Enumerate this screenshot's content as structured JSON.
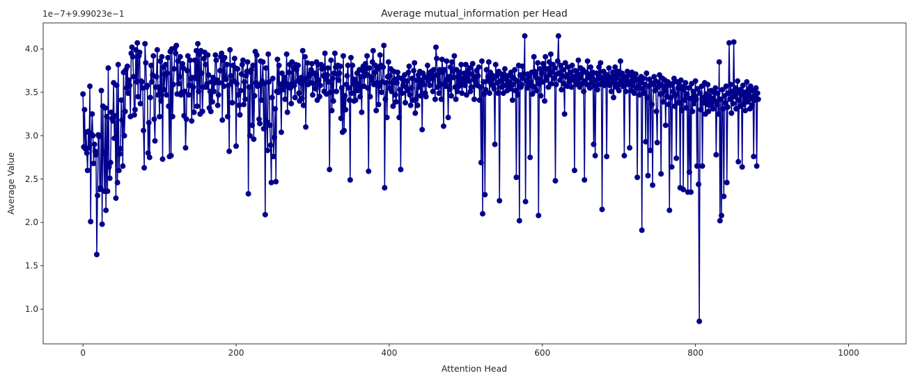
{
  "chart_data": {
    "type": "line",
    "title": "Average mutual_information per Head",
    "xlabel": "Attention Head",
    "ylabel": "Average Value",
    "y_offset_label": "1e−7+9.99023e−1",
    "xlim": [
      -52,
      1075
    ],
    "ylim": [
      0.6,
      4.3
    ],
    "x_ticks": [
      0,
      200,
      400,
      600,
      800,
      1000
    ],
    "x_tick_labels": [
      "0",
      "200",
      "400",
      "600",
      "800",
      "1000"
    ],
    "y_ticks": [
      1.0,
      1.5,
      2.0,
      2.5,
      3.0,
      3.5,
      4.0
    ],
    "y_tick_labels": [
      "1.0",
      "1.5",
      "2.0",
      "2.5",
      "3.0",
      "3.5",
      "4.0"
    ],
    "grid": false,
    "series": [
      {
        "color": "#00008b",
        "marker": "circle",
        "x_start": 0,
        "x_step": 1,
        "values": [
          3.48,
          2.87,
          3.3,
          2.85,
          3.04,
          2.8,
          2.6,
          3.05,
          2.86,
          3.57,
          2.01,
          3.02,
          3.25,
          3.0,
          2.68,
          2.9,
          2.82,
          2.78,
          1.63,
          2.31,
          3.01,
          2.99,
          2.38,
          2.4,
          3.52,
          1.98,
          3.34,
          2.8,
          2.36,
          3.32,
          2.14,
          3.22,
          2.36,
          3.78,
          2.64,
          2.51,
          2.69,
          3.27,
          3.2,
          3.17,
          3.61,
          2.97,
          3.23,
          2.28,
          3.58,
          2.46,
          3.82,
          2.6,
          2.79,
          2.85,
          3.41,
          3.18,
          2.65,
          3.73,
          3.0,
          3.28,
          3.76,
          3.55,
          3.8,
          3.49,
          3.64,
          3.58,
          3.22,
          3.95,
          4.02,
          3.91,
          3.68,
          3.24,
          3.3,
          3.99,
          3.62,
          4.07,
          3.45,
          3.92,
          3.96,
          3.37,
          3.63,
          3.62,
          3.55,
          3.06,
          2.63,
          4.06,
          3.84,
          3.56,
          3.58,
          2.8,
          3.15,
          2.75,
          3.44,
          3.81,
          3.62,
          3.7,
          3.92,
          3.19,
          2.94,
          3.56,
          3.68,
          3.99,
          3.47,
          3.56,
          3.22,
          3.86,
          3.4,
          3.91,
          2.73,
          3.79,
          3.53,
          3.71,
          3.82,
          3.47,
          3.72,
          3.9,
          3.34,
          2.76,
          3.97,
          2.77,
          4.0,
          3.22,
          3.59,
          3.77,
          4.01,
          3.95,
          4.04,
          3.48,
          3.86,
          3.6,
          3.68,
          3.91,
          3.47,
          3.5,
          3.83,
          3.78,
          3.23,
          3.51,
          2.86,
          3.19,
          3.75,
          3.92,
          3.47,
          3.58,
          3.87,
          3.66,
          3.17,
          3.67,
          3.56,
          3.27,
          3.87,
          3.66,
          3.98,
          3.34,
          4.06,
          3.51,
          3.94,
          3.25,
          3.98,
          3.72,
          3.28,
          3.56,
          3.89,
          3.96,
          3.82,
          3.56,
          3.6,
          3.93,
          3.7,
          3.32,
          3.51,
          3.28,
          3.62,
          3.39,
          3.67,
          3.51,
          3.61,
          3.93,
          3.87,
          3.64,
          3.35,
          3.47,
          3.61,
          3.75,
          3.91,
          3.95,
          3.18,
          3.87,
          3.57,
          3.9,
          3.67,
          3.65,
          3.82,
          3.22,
          3.58,
          2.82,
          3.99,
          3.69,
          3.62,
          3.38,
          3.81,
          3.63,
          3.89,
          3.78,
          2.88,
          3.6,
          3.77,
          3.47,
          3.35,
          3.24,
          3.52,
          3.71,
          3.82,
          3.87,
          3.36,
          3.62,
          3.42,
          3.69,
          3.74,
          3.85,
          2.33,
          3.56,
          3.0,
          3.73,
          3.76,
          3.12,
          3.81,
          2.96,
          3.46,
          3.97,
          3.61,
          3.93,
          3.57,
          3.59,
          3.19,
          3.14,
          3.86,
          3.41,
          3.63,
          3.85,
          3.08,
          3.6,
          2.09,
          3.78,
          3.16,
          2.83,
          3.94,
          3.62,
          3.12,
          2.89,
          2.46,
          3.44,
          3.66,
          2.76,
          2.98,
          3.31,
          2.47,
          3.51,
          3.88,
          3.5,
          3.81,
          3.52,
          3.59,
          3.04,
          3.72,
          3.53,
          3.62,
          3.67,
          3.42,
          3.57,
          3.94,
          3.27,
          3.59,
          3.73,
          3.82,
          3.55,
          3.37,
          3.85,
          3.6,
          3.78,
          3.58,
          3.44,
          3.82,
          3.76,
          3.63,
          3.81,
          3.49,
          3.4,
          3.61,
          3.67,
          3.43,
          3.98,
          3.35,
          3.64,
          3.91,
          3.1,
          3.66,
          3.84,
          3.59,
          3.68,
          3.71,
          3.61,
          3.76,
          3.83,
          3.47,
          3.6,
          3.72,
          3.71,
          3.54,
          3.85,
          3.41,
          3.82,
          3.64,
          3.45,
          3.58,
          3.82,
          3.77,
          3.8,
          3.69,
          3.51,
          3.95,
          3.66,
          3.48,
          3.7,
          3.78,
          3.62,
          2.61,
          3.5,
          3.87,
          3.29,
          3.66,
          3.4,
          3.72,
          3.95,
          3.79,
          3.51,
          3.71,
          3.81,
          3.64,
          3.72,
          3.8,
          3.2,
          3.55,
          3.04,
          3.92,
          3.06,
          3.46,
          3.3,
          3.59,
          3.69,
          3.81,
          3.55,
          3.41,
          2.49,
          3.9,
          3.49,
          3.81,
          3.6,
          3.4,
          3.65,
          3.41,
          3.6,
          3.72,
          3.52,
          3.57,
          3.76,
          3.45,
          3.68,
          3.27,
          3.75,
          3.8,
          3.57,
          3.69,
          3.83,
          3.71,
          3.92,
          3.55,
          2.59,
          3.78,
          3.45,
          3.68,
          3.64,
          3.85,
          3.98,
          3.59,
          3.73,
          3.81,
          3.29,
          3.61,
          3.77,
          3.36,
          3.57,
          3.93,
          3.81,
          3.5,
          3.62,
          3.79,
          4.04,
          2.4,
          3.42,
          3.61,
          3.21,
          3.68,
          3.85,
          3.55,
          3.69,
          3.77,
          3.51,
          3.61,
          3.34,
          3.74,
          3.65,
          3.47,
          3.39,
          3.61,
          3.73,
          3.67,
          3.21,
          3.53,
          2.61,
          3.66,
          3.49,
          3.58,
          3.64,
          3.7,
          3.38,
          3.56,
          3.63,
          3.52,
          3.73,
          3.8,
          3.47,
          3.35,
          3.55,
          3.66,
          3.41,
          3.75,
          3.84,
          3.26,
          3.42,
          3.64,
          3.35,
          3.7,
          3.56,
          3.74,
          3.46,
          3.64,
          3.07,
          3.72,
          3.59,
          3.68,
          3.49,
          3.45,
          3.67,
          3.81,
          3.63,
          3.72,
          3.58,
          3.7,
          3.74,
          3.66,
          3.51,
          3.76,
          3.69,
          3.42,
          4.02,
          3.89,
          3.56,
          3.71,
          3.49,
          3.76,
          3.59,
          3.42,
          3.88,
          3.73,
          3.11,
          3.76,
          3.61,
          3.57,
          3.86,
          3.65,
          3.21,
          3.68,
          3.53,
          3.79,
          3.46,
          3.85,
          3.75,
          3.67,
          3.92,
          3.56,
          3.42,
          3.76,
          3.51,
          3.68,
          3.57,
          3.73,
          3.61,
          3.82,
          3.49,
          3.61,
          3.66,
          3.72,
          3.58,
          3.82,
          3.47,
          3.69,
          3.75,
          3.63,
          3.78,
          3.51,
          3.56,
          3.71,
          3.83,
          3.65,
          3.42,
          3.68,
          3.62,
          3.75,
          3.58,
          3.69,
          3.79,
          3.41,
          3.56,
          2.69,
          3.86,
          2.1,
          3.62,
          3.48,
          2.32,
          3.53,
          3.76,
          3.63,
          3.68,
          3.85,
          3.49,
          3.73,
          3.6,
          3.7,
          3.58,
          3.66,
          3.54,
          2.9,
          3.82,
          3.69,
          3.61,
          3.49,
          3.74,
          2.25,
          3.63,
          3.71,
          3.56,
          3.66,
          3.49,
          3.71,
          3.77,
          3.58,
          3.65,
          3.52,
          3.69,
          3.58,
          3.62,
          3.54,
          3.73,
          3.68,
          3.41,
          3.59,
          3.66,
          3.76,
          3.52,
          2.52,
          3.63,
          3.47,
          3.81,
          2.02,
          3.7,
          3.56,
          3.59,
          3.8,
          3.66,
          3.71,
          4.15,
          2.24,
          3.63,
          3.55,
          3.71,
          3.68,
          3.58,
          2.75,
          3.62,
          3.73,
          3.48,
          3.57,
          3.91,
          3.74,
          3.69,
          3.52,
          3.66,
          3.84,
          2.08,
          3.6,
          3.77,
          3.46,
          3.72,
          3.62,
          3.83,
          3.78,
          3.4,
          3.91,
          3.67,
          3.64,
          3.77,
          3.56,
          3.85,
          3.7,
          3.94,
          3.6,
          3.74,
          3.82,
          3.66,
          3.78,
          2.48,
          3.59,
          3.71,
          3.86,
          4.15,
          3.72,
          3.64,
          3.81,
          3.53,
          3.69,
          3.76,
          3.6,
          3.25,
          3.84,
          3.68,
          3.7,
          3.57,
          3.79,
          3.62,
          3.66,
          3.73,
          3.56,
          3.81,
          3.68,
          3.64,
          2.6,
          3.75,
          3.59,
          3.7,
          3.62,
          3.87,
          3.66,
          3.56,
          3.78,
          3.71,
          3.6,
          3.76,
          3.51,
          2.49,
          3.63,
          3.73,
          3.59,
          3.86,
          3.67,
          3.71,
          3.55,
          3.79,
          3.61,
          3.68,
          3.73,
          2.9,
          3.58,
          2.77,
          3.64,
          3.72,
          3.53,
          3.66,
          3.79,
          3.59,
          3.84,
          3.67,
          2.15,
          3.62,
          3.74,
          3.58,
          3.71,
          3.66,
          2.76,
          3.7,
          3.62,
          3.78,
          3.58,
          3.66,
          3.51,
          3.68,
          3.73,
          3.44,
          3.61,
          3.79,
          3.66,
          3.56,
          3.69,
          3.74,
          3.52,
          3.6,
          3.86,
          3.64,
          3.72,
          3.57,
          3.63,
          2.77,
          3.68,
          3.51,
          3.66,
          3.74,
          3.59,
          3.62,
          2.86,
          3.7,
          3.52,
          3.73,
          3.58,
          3.67,
          3.49,
          3.63,
          3.71,
          3.55,
          2.52,
          3.65,
          3.58,
          3.47,
          3.61,
          3.68,
          1.91,
          3.54,
          3.66,
          3.49,
          3.59,
          2.93,
          3.72,
          3.44,
          2.54,
          3.57,
          3.65,
          2.83,
          3.61,
          3.36,
          2.43,
          3.59,
          3.68,
          3.52,
          3.63,
          3.28,
          2.92,
          3.56,
          3.61,
          3.7,
          3.48,
          2.56,
          3.58,
          3.66,
          3.39,
          3.52,
          3.64,
          3.12,
          3.57,
          3.45,
          3.62,
          3.36,
          2.14,
          3.58,
          3.44,
          2.64,
          3.6,
          3.51,
          3.66,
          3.34,
          3.47,
          2.74,
          3.62,
          3.55,
          3.38,
          3.58,
          2.4,
          3.64,
          3.29,
          3.53,
          2.38,
          3.57,
          3.41,
          3.61,
          3.32,
          3.48,
          2.35,
          3.55,
          2.58,
          3.43,
          2.35,
          3.6,
          3.28,
          3.51,
          3.37,
          3.46,
          3.63,
          3.42,
          2.65,
          3.54,
          2.44,
          0.86,
          3.49,
          3.3,
          3.57,
          2.65,
          3.44,
          3.38,
          3.61,
          3.25,
          3.48,
          3.36,
          3.59,
          3.28,
          3.46,
          3.39,
          3.52,
          3.34,
          3.43,
          3.31,
          3.5,
          3.4,
          3.55,
          2.78,
          3.36,
          3.49,
          3.25,
          3.85,
          2.02,
          3.42,
          2.08,
          3.53,
          3.31,
          2.3,
          3.46,
          3.38,
          3.57,
          2.46,
          3.33,
          3.49,
          4.07,
          3.42,
          3.59,
          3.26,
          3.51,
          3.37,
          4.08,
          3.45,
          3.55,
          3.31,
          3.49,
          3.63,
          2.7,
          3.41,
          3.53,
          3.34,
          3.47,
          2.64,
          3.58,
          3.36,
          3.5,
          3.29,
          3.44,
          3.62,
          3.39,
          3.53,
          3.47,
          3.31,
          3.57,
          3.43,
          3.35,
          3.52,
          2.76,
          3.46,
          3.41,
          3.55,
          2.65,
          3.49,
          3.42
        ]
      }
    ]
  }
}
